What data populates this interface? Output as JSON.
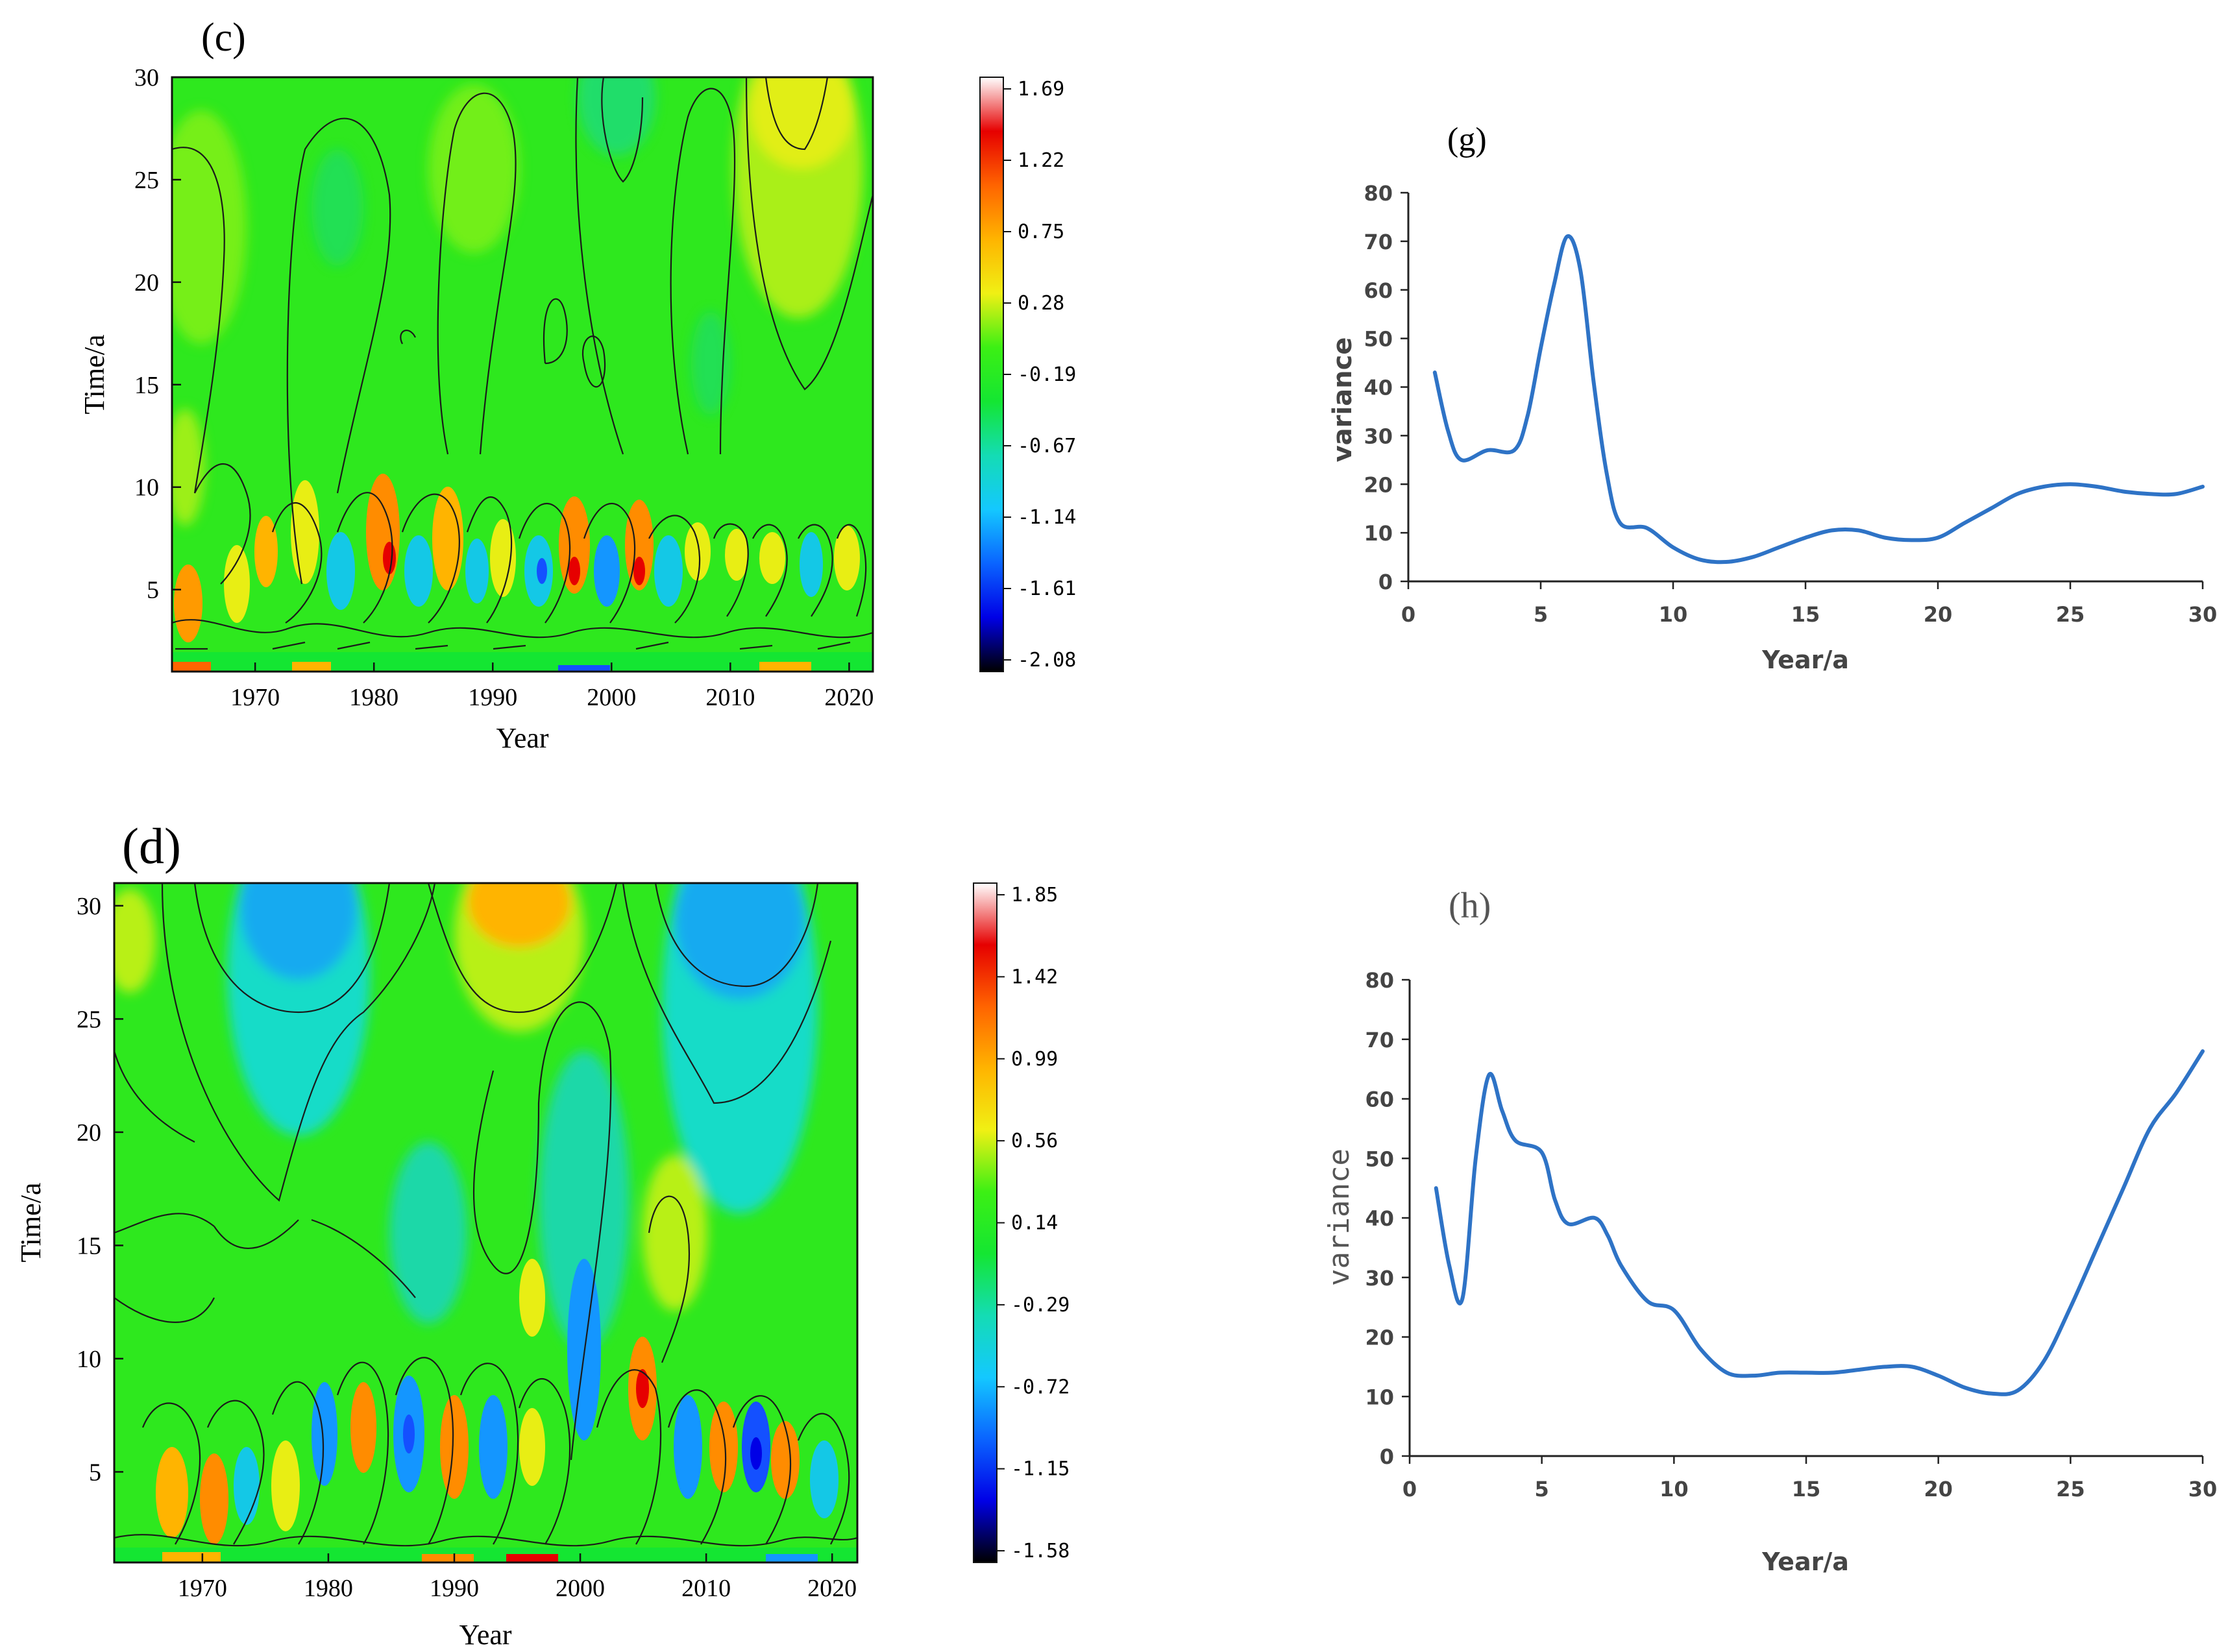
{
  "colors": {
    "wavelet_stops": [
      "#000000",
      "#0000e6",
      "#0a64ff",
      "#14c8ff",
      "#14dcb4",
      "#14e632",
      "#3cf014",
      "#f0f014",
      "#ffb400",
      "#ff6400",
      "#e60000",
      "#ffffff"
    ],
    "line": "#2e73c6",
    "axis": "#222222"
  },
  "chart_data": [
    {
      "id": "c",
      "type": "heatmap",
      "panel_label": "(c)",
      "title": "",
      "xlabel": "Year",
      "ylabel": "Time/a",
      "xlim": [
        1963,
        2022
      ],
      "ylim": [
        1,
        30
      ],
      "xticks": [
        "1970",
        "1980",
        "1990",
        "2000",
        "2010",
        "2020"
      ],
      "yticks": [
        "5",
        "10",
        "15",
        "20",
        "25",
        "30"
      ],
      "colorbar": [
        "1.69",
        "1.22",
        "0.75",
        "0.28",
        "-0.19",
        "-0.67",
        "-1.14",
        "-1.61",
        "-2.08"
      ],
      "value_range": [
        -2.08,
        1.69
      ]
    },
    {
      "id": "d",
      "type": "heatmap",
      "panel_label": "(d)",
      "title": "",
      "xlabel": "Year",
      "ylabel": "Time/a",
      "xlim": [
        1963,
        2022
      ],
      "ylim": [
        1,
        31
      ],
      "xticks": [
        "1970",
        "1980",
        "1990",
        "2000",
        "2010",
        "2020"
      ],
      "yticks": [
        "5",
        "10",
        "15",
        "20",
        "25",
        "30"
      ],
      "colorbar": [
        "1.85",
        "1.42",
        "0.99",
        "0.56",
        "0.14",
        "-0.29",
        "-0.72",
        "-1.15",
        "-1.58"
      ],
      "value_range": [
        -1.58,
        1.85
      ]
    },
    {
      "id": "g",
      "type": "line",
      "panel_label": "(g)",
      "title": "",
      "xlabel": "Year/a",
      "ylabel": "variance",
      "xlim": [
        0,
        30
      ],
      "ylim": [
        0,
        80
      ],
      "xticks": [
        "0",
        "5",
        "10",
        "15",
        "20",
        "25",
        "30"
      ],
      "yticks": [
        "0",
        "10",
        "20",
        "30",
        "40",
        "50",
        "60",
        "70",
        "80"
      ],
      "series": [
        {
          "name": "variance",
          "x": [
            1,
            1.5,
            2,
            3,
            4,
            4.5,
            5,
            5.5,
            6,
            6.5,
            7,
            7.5,
            8,
            9,
            10,
            11,
            12,
            13,
            14,
            15,
            16,
            17,
            18,
            19,
            20,
            21,
            22,
            23,
            24,
            25,
            26,
            27,
            28,
            29,
            30
          ],
          "y": [
            43,
            31,
            25,
            27,
            27,
            34,
            48,
            61,
            71,
            64,
            41,
            22,
            12,
            11,
            7,
            4.5,
            4,
            5,
            7,
            9,
            10.5,
            10.5,
            9,
            8.5,
            9,
            12,
            15,
            18,
            19.5,
            20,
            19.5,
            18.5,
            18,
            18,
            19.5
          ]
        }
      ]
    },
    {
      "id": "h",
      "type": "line",
      "panel_label": "(h)",
      "title": "",
      "xlabel": "Year/a",
      "ylabel": "variance",
      "xlim": [
        0,
        30
      ],
      "ylim": [
        0,
        80
      ],
      "xticks": [
        "0",
        "5",
        "10",
        "15",
        "20",
        "25",
        "30"
      ],
      "yticks": [
        "0",
        "10",
        "20",
        "30",
        "40",
        "50",
        "60",
        "70",
        "80"
      ],
      "series": [
        {
          "name": "variance",
          "x": [
            1,
            1.5,
            2,
            2.5,
            3,
            3.5,
            4,
            5,
            5.5,
            6,
            7,
            7.5,
            8,
            9,
            10,
            11,
            12,
            13,
            14,
            15,
            16,
            17,
            18,
            19,
            20,
            21,
            22,
            23,
            24,
            25,
            26,
            27,
            28,
            29,
            30
          ],
          "y": [
            45,
            32,
            26.5,
            50,
            64,
            58,
            53,
            51,
            43,
            39,
            40,
            37,
            32,
            26,
            24.5,
            18,
            14,
            13.5,
            14,
            14,
            14,
            14.5,
            15,
            15,
            13.5,
            11.5,
            10.5,
            11,
            16,
            25,
            35,
            45,
            55,
            61,
            68
          ]
        }
      ]
    }
  ]
}
